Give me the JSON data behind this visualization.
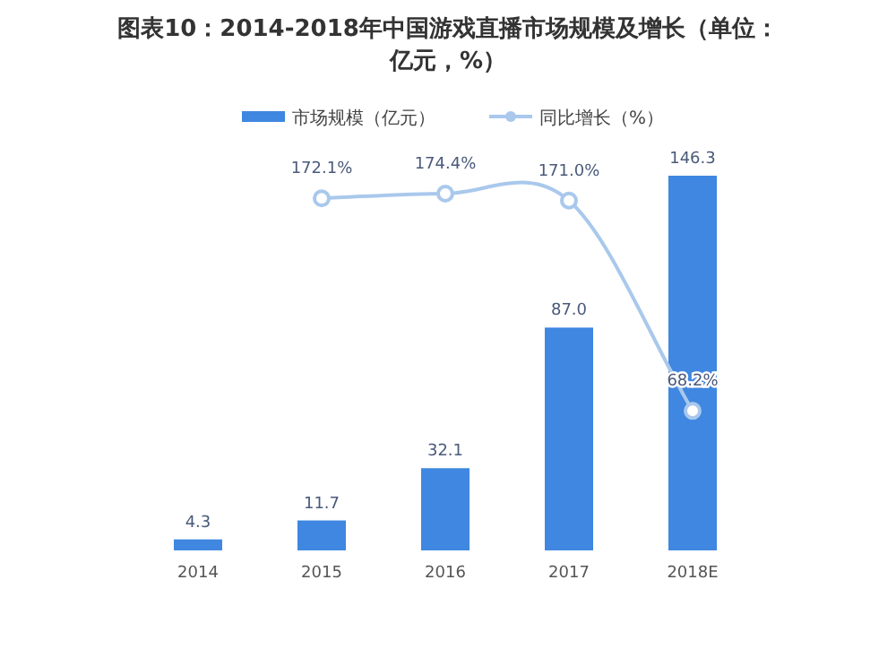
{
  "chart_data": {
    "type": "bar",
    "title": "图表10：2014-2018年中国游戏直播市场规模及增长（单位：亿元，%）",
    "categories": [
      "2014",
      "2015",
      "2016",
      "2017",
      "2018E"
    ],
    "series": [
      {
        "name": "市场规模（亿元）",
        "color": "#3f87e0",
        "values": [
          4.3,
          11.7,
          32.1,
          87.0,
          146.3
        ],
        "value_labels": [
          "4.3",
          "11.7",
          "32.1",
          "87.0",
          "146.3"
        ]
      },
      {
        "name": "同比增长（%）",
        "type": "line",
        "axis": "y2",
        "color": "#a9c8ec",
        "values": [
          null,
          172.1,
          174.4,
          171.0,
          68.2
        ],
        "value_labels": [
          null,
          "172.1%",
          "174.4%",
          "171.0%",
          "68.2%"
        ]
      }
    ],
    "legend": "top",
    "marker": "circle",
    "tick_labels": "x"
  }
}
